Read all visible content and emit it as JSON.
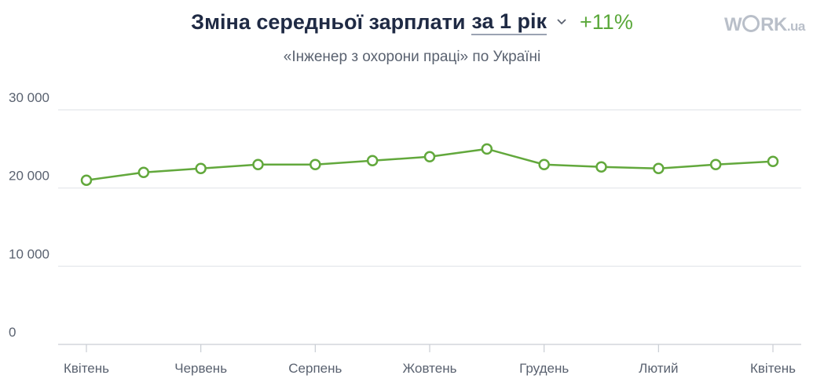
{
  "header": {
    "title": "Зміна середньої зарплати",
    "period_selected": "за 1 рік",
    "change": "+11%",
    "subtitle": "«Інженер з охорони праці» по Україні"
  },
  "logo": {
    "part1": "W",
    "part2": "RK",
    "tld": ".ua"
  },
  "colors": {
    "line": "#62a83c",
    "grid": "#e3e6ea",
    "axis": "#c9cdd3",
    "change": "#5aa83a"
  },
  "chart_data": {
    "type": "line",
    "title": "Зміна середньої зарплати",
    "xlabel": "",
    "ylabel": "",
    "ylim": [
      0,
      30000
    ],
    "yticks": [
      0,
      10000,
      20000,
      30000
    ],
    "ytick_labels": [
      "0",
      "10 000",
      "20 000",
      "30 000"
    ],
    "x_tick_labels": [
      {
        "index": 0,
        "label": "Квітень"
      },
      {
        "index": 2,
        "label": "Червень"
      },
      {
        "index": 4,
        "label": "Серпень"
      },
      {
        "index": 6,
        "label": "Жовтень"
      },
      {
        "index": 8,
        "label": "Грудень"
      },
      {
        "index": 10,
        "label": "Лютий"
      },
      {
        "index": 12,
        "label": "Квітень"
      }
    ],
    "grid": true,
    "legend": "none",
    "series": [
      {
        "values": [
          21000,
          22000,
          22500,
          23000,
          23000,
          23500,
          24000,
          25000,
          23000,
          22700,
          22500,
          23000,
          23400
        ]
      }
    ]
  }
}
